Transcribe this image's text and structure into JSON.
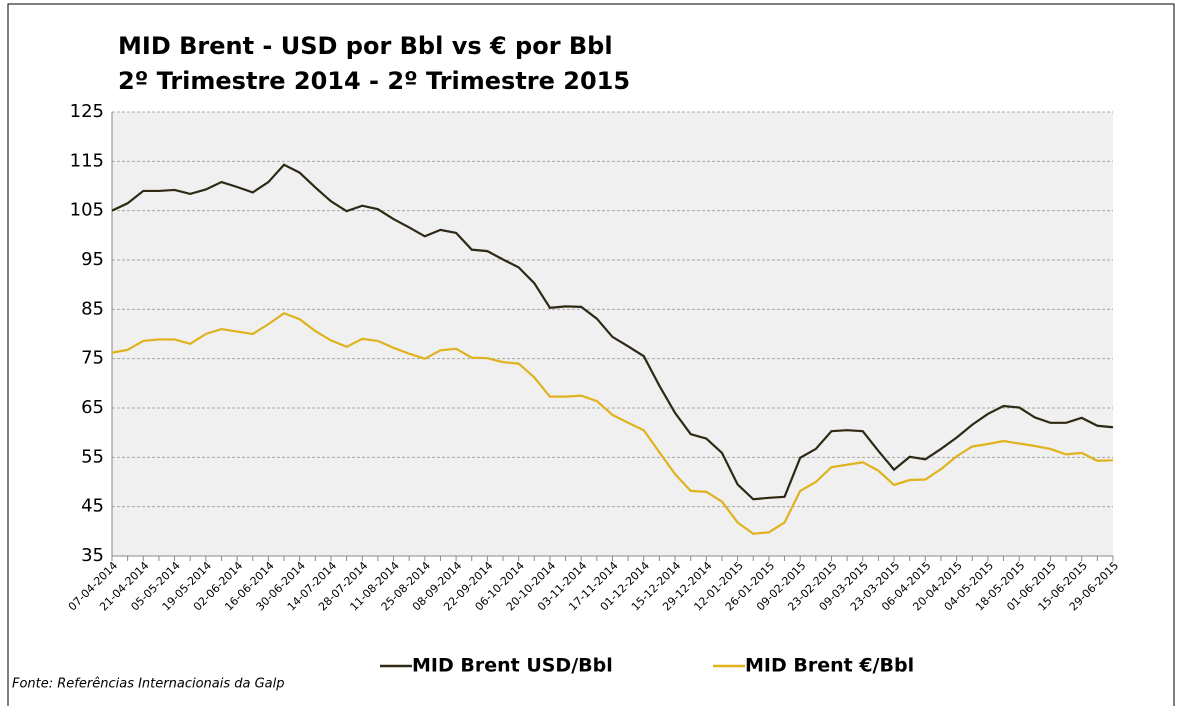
{
  "chart_data": {
    "type": "line",
    "title": "MID Brent - USD por Bbl vs € por Bbl",
    "subtitle": "2º Trimestre 2014 - 2º Trimestre 2015",
    "source": "Fonte: Referências Internacionais da Galp",
    "categories": [
      "07-04-2014",
      null,
      "21-04-2014",
      null,
      "05-05-2014",
      null,
      "19-05-2014",
      null,
      "02-06-2014",
      null,
      "16-06-2014",
      null,
      "30-06-2014",
      null,
      "14-07-2014",
      null,
      "28-07-2014",
      null,
      "11-08-2014",
      null,
      "25-08-2014",
      null,
      "08-09-2014",
      null,
      "22-09-2014",
      null,
      "06-10-2014",
      null,
      "20-10-2014",
      null,
      "03-11-2014",
      null,
      "17-11-2014",
      null,
      "01-12-2014",
      null,
      "15-12-2014",
      null,
      "29-12-2014",
      null,
      "12-01-2015",
      null,
      "26-01-2015",
      null,
      "09-02-2015",
      null,
      "23-02-2015",
      null,
      "09-03-2015",
      null,
      "23-03-2015",
      null,
      "06-04-2015",
      null,
      "20-04-2015",
      null,
      "04-05-2015",
      null,
      "18-05-2015",
      null,
      "01-06-2015",
      null,
      "15-06-2015",
      null,
      "29-06-2015"
    ],
    "series": [
      {
        "name": "MID Brent USD/Bbl",
        "color": "#2e2914",
        "values": [
          105,
          106.5,
          109,
          109,
          109.2,
          108.4,
          109.3,
          110.8,
          109.8,
          108.7,
          110.8,
          114.3,
          112.7,
          109.7,
          106.9,
          104.9,
          106,
          105.3,
          103.3,
          101.6,
          99.8,
          101.1,
          100.5,
          97.1,
          96.8,
          95.1,
          93.5,
          90.3,
          85.3,
          85.6,
          85.5,
          83.1,
          79.4,
          77.5,
          75.5,
          69.5,
          64,
          59.7,
          58.8,
          55.9,
          49.5,
          46.5,
          46.8,
          47,
          54.9,
          56.7,
          60.3,
          60.5,
          60.3,
          56.3,
          52.5,
          55.1,
          54.6,
          56.7,
          59,
          61.6,
          63.8,
          65.4,
          65.1,
          63.1,
          62,
          62,
          63,
          61.4,
          61.1
        ]
      },
      {
        "name": "MID Brent €/Bbl",
        "color": "#dfb21e",
        "values": [
          76.2,
          76.8,
          78.6,
          78.9,
          78.9,
          78,
          80,
          81,
          80.5,
          80,
          82,
          84.2,
          83,
          80.6,
          78.7,
          77.4,
          79,
          78.6,
          77.2,
          76,
          75,
          76.7,
          77,
          75.2,
          75.1,
          74.3,
          74,
          71.2,
          67.3,
          67.3,
          67.5,
          66.4,
          63.6,
          62,
          60.5,
          56,
          51.6,
          48.2,
          48,
          46,
          41.8,
          39.5,
          39.8,
          41.8,
          48.2,
          50,
          53,
          53.5,
          54,
          52.3,
          49.4,
          50.4,
          50.5,
          52.6,
          55.2,
          57.2,
          57.7,
          58.3,
          57.8,
          57.3,
          56.7,
          55.6,
          55.9,
          54.3,
          54.4
        ]
      }
    ],
    "ylim": [
      35,
      125
    ],
    "yticks": [
      35,
      45,
      55,
      65,
      75,
      85,
      95,
      105,
      115,
      125
    ],
    "grid": true
  }
}
